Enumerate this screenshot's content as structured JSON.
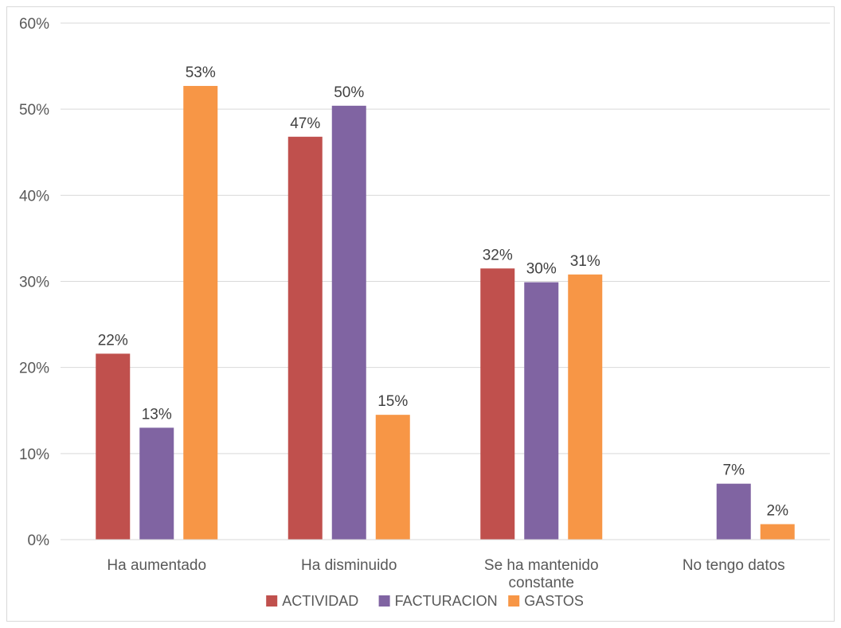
{
  "chart_data": {
    "type": "bar",
    "categories": [
      "Ha aumentado",
      "Ha disminuido",
      "Se ha mantenido constante",
      "No tengo datos"
    ],
    "category_lines": [
      [
        "Ha aumentado"
      ],
      [
        "Ha disminuido"
      ],
      [
        "Se ha mantenido",
        "constante"
      ],
      [
        "No tengo datos"
      ]
    ],
    "series": [
      {
        "name": "ACTIVIDAD",
        "color": "#C0504D",
        "values": [
          21.6,
          46.8,
          31.5,
          null
        ],
        "labels": [
          "22%",
          "47%",
          "32%",
          null
        ]
      },
      {
        "name": "FACTURACION",
        "color": "#8064A2",
        "values": [
          13.0,
          50.4,
          29.9,
          6.5
        ],
        "labels": [
          "13%",
          "50%",
          "30%",
          "7%"
        ]
      },
      {
        "name": "GASTOS",
        "color": "#F79646",
        "values": [
          52.7,
          14.5,
          30.8,
          1.8
        ],
        "labels": [
          "53%",
          "15%",
          "31%",
          "2%"
        ]
      }
    ],
    "y_ticks": [
      "0%",
      "10%",
      "20%",
      "30%",
      "40%",
      "50%",
      "60%"
    ],
    "ylim": [
      0,
      60
    ],
    "grid": true,
    "legend_position": "bottom",
    "title": "",
    "xlabel": "",
    "ylabel": ""
  }
}
